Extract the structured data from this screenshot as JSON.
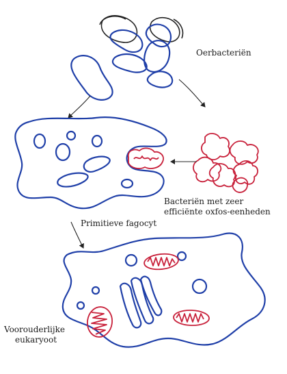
{
  "labels": {
    "ancestral_bacteria": "Oerbacteriën",
    "efficient_bacteria_line1": "Bacteriën met zeer",
    "efficient_bacteria_line2": "efficiënte oxfos-eenheden",
    "primitive_phagocyte": "Primitieve fagocyt",
    "ancestral_eukaryote_line1": "Voorouderlijke",
    "ancestral_eukaryote_line2": "eukaryoot"
  },
  "colors": {
    "membrane": "#1f3fa8",
    "mitochondria": "#c8203a",
    "outline": "#222222"
  }
}
